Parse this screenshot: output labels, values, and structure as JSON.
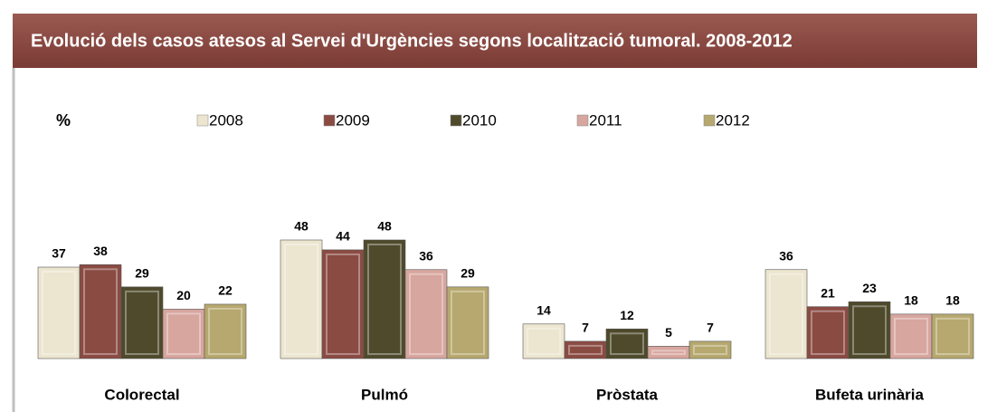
{
  "chart_data": {
    "type": "bar",
    "title": "Evolució dels casos atesos al Servei d'Urgències segons localització tumoral. 2008-2012",
    "y_label": "%",
    "categories": [
      "Colorectal",
      "Pulmó",
      "Pròstata",
      "Bufeta urinària"
    ],
    "series": [
      {
        "name": "2008",
        "color": "#ece5cf",
        "values": [
          37,
          48,
          14,
          36
        ]
      },
      {
        "name": "2009",
        "color": "#8a4b43",
        "values": [
          38,
          44,
          7,
          21
        ]
      },
      {
        "name": "2010",
        "color": "#4e4a2b",
        "values": [
          29,
          48,
          12,
          23
        ]
      },
      {
        "name": "2011",
        "color": "#d7a69e",
        "values": [
          20,
          36,
          5,
          18
        ]
      },
      {
        "name": "2012",
        "color": "#b6a86e",
        "values": [
          22,
          29,
          7,
          18
        ]
      }
    ],
    "legend": "top"
  }
}
